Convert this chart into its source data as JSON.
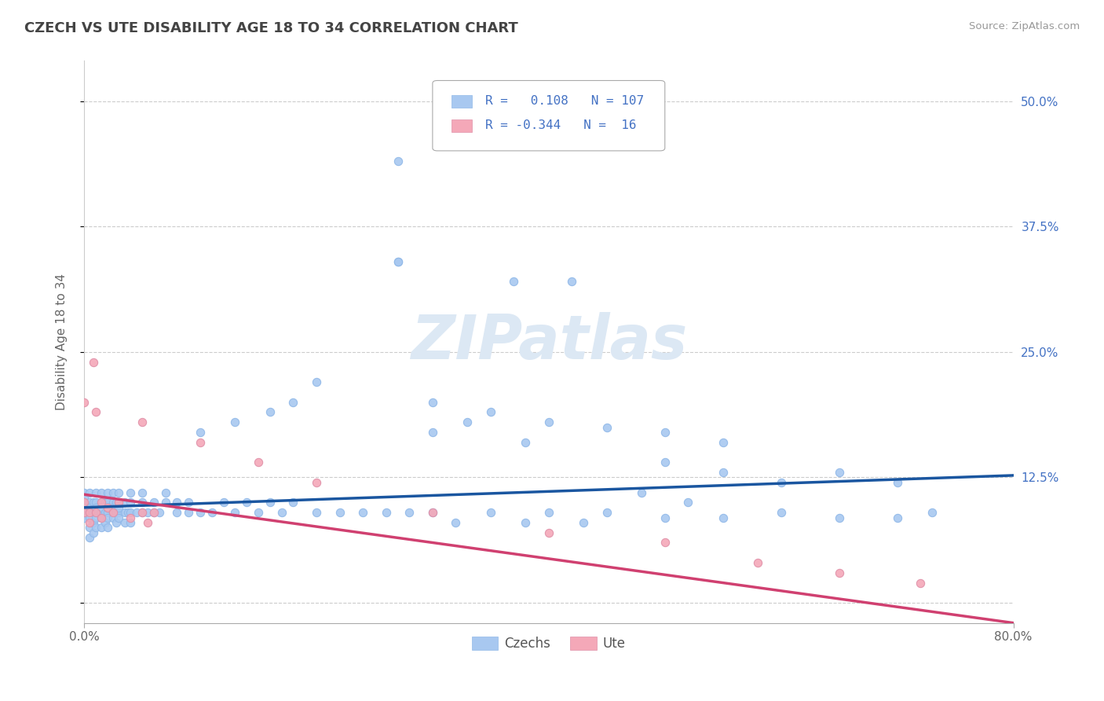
{
  "title": "CZECH VS UTE DISABILITY AGE 18 TO 34 CORRELATION CHART",
  "source": "Source: ZipAtlas.com",
  "ylabel": "Disability Age 18 to 34",
  "xlim": [
    0.0,
    0.8
  ],
  "ylim": [
    -0.02,
    0.54
  ],
  "xtick_vals": [
    0.0,
    0.8
  ],
  "xtick_labels": [
    "0.0%",
    "80.0%"
  ],
  "ytick_vals": [
    0.0,
    0.125,
    0.25,
    0.375,
    0.5
  ],
  "ytick_labels": [
    "",
    "12.5%",
    "25.0%",
    "37.5%",
    "50.0%"
  ],
  "czech_R": 0.108,
  "czech_N": 107,
  "ute_R": -0.344,
  "ute_N": 16,
  "czech_color": "#a8c8f0",
  "ute_color": "#f4a8b8",
  "czech_line_color": "#1a56a0",
  "ute_line_color": "#d04070",
  "legend_color": "#4472c4",
  "tick_color": "#4472c4",
  "watermark": "ZIPatlas",
  "czech_line_y0": 0.095,
  "czech_line_y1": 0.127,
  "ute_line_y0": 0.108,
  "ute_line_y1": -0.02,
  "czech_x": [
    0.0,
    0.0,
    0.0,
    0.0,
    0.0,
    0.0,
    0.005,
    0.005,
    0.005,
    0.005,
    0.005,
    0.005,
    0.005,
    0.008,
    0.008,
    0.008,
    0.008,
    0.01,
    0.01,
    0.01,
    0.01,
    0.01,
    0.01,
    0.015,
    0.015,
    0.015,
    0.015,
    0.015,
    0.015,
    0.018,
    0.018,
    0.018,
    0.02,
    0.02,
    0.02,
    0.02,
    0.02,
    0.02,
    0.025,
    0.025,
    0.025,
    0.025,
    0.025,
    0.028,
    0.028,
    0.028,
    0.03,
    0.03,
    0.03,
    0.03,
    0.03,
    0.035,
    0.035,
    0.035,
    0.038,
    0.04,
    0.04,
    0.04,
    0.04,
    0.045,
    0.05,
    0.05,
    0.05,
    0.055,
    0.06,
    0.06,
    0.065,
    0.07,
    0.07,
    0.08,
    0.08,
    0.09,
    0.09,
    0.1,
    0.11,
    0.12,
    0.13,
    0.14,
    0.15,
    0.16,
    0.17,
    0.18,
    0.2,
    0.22,
    0.24,
    0.26,
    0.28,
    0.3,
    0.32,
    0.35,
    0.38,
    0.4,
    0.43,
    0.45,
    0.5,
    0.55,
    0.6,
    0.65,
    0.7,
    0.73,
    0.27,
    0.3,
    0.35,
    0.4,
    0.45,
    0.5,
    0.55
  ],
  "czech_y": [
    0.09,
    0.1,
    0.11,
    0.095,
    0.085,
    0.105,
    0.09,
    0.1,
    0.11,
    0.095,
    0.085,
    0.075,
    0.065,
    0.09,
    0.1,
    0.08,
    0.07,
    0.09,
    0.1,
    0.11,
    0.095,
    0.085,
    0.075,
    0.09,
    0.1,
    0.11,
    0.095,
    0.085,
    0.075,
    0.09,
    0.1,
    0.08,
    0.09,
    0.1,
    0.11,
    0.095,
    0.085,
    0.075,
    0.09,
    0.1,
    0.11,
    0.095,
    0.085,
    0.09,
    0.1,
    0.08,
    0.09,
    0.1,
    0.11,
    0.095,
    0.085,
    0.09,
    0.1,
    0.08,
    0.09,
    0.09,
    0.1,
    0.11,
    0.08,
    0.09,
    0.09,
    0.1,
    0.11,
    0.09,
    0.09,
    0.1,
    0.09,
    0.1,
    0.11,
    0.09,
    0.1,
    0.09,
    0.1,
    0.09,
    0.09,
    0.1,
    0.09,
    0.1,
    0.09,
    0.1,
    0.09,
    0.1,
    0.09,
    0.09,
    0.09,
    0.09,
    0.09,
    0.09,
    0.08,
    0.09,
    0.08,
    0.09,
    0.08,
    0.09,
    0.085,
    0.085,
    0.09,
    0.085,
    0.085,
    0.09,
    0.34,
    0.2,
    0.19,
    0.18,
    0.175,
    0.17,
    0.16
  ],
  "ute_x": [
    0.0,
    0.0,
    0.005,
    0.005,
    0.008,
    0.01,
    0.01,
    0.015,
    0.015,
    0.02,
    0.025,
    0.03,
    0.04,
    0.05,
    0.055,
    0.06
  ],
  "ute_y": [
    0.1,
    0.09,
    0.09,
    0.08,
    0.24,
    0.19,
    0.09,
    0.1,
    0.085,
    0.095,
    0.09,
    0.1,
    0.085,
    0.09,
    0.08,
    0.09
  ]
}
